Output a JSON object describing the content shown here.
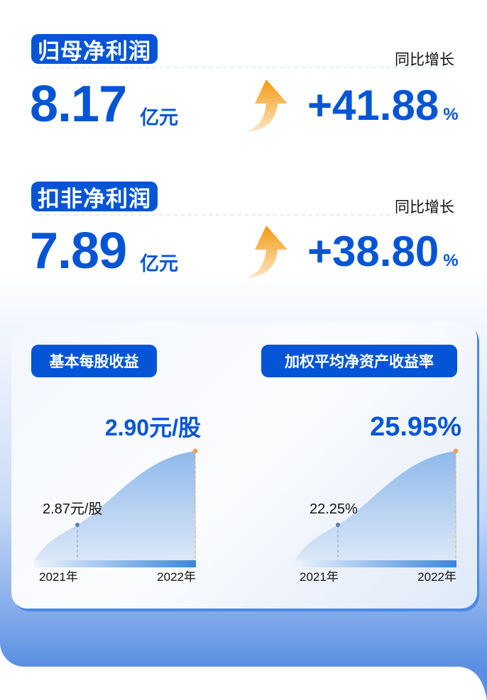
{
  "metrics": [
    {
      "title": "归母净利润",
      "yoy_label": "同比增长",
      "value": "8.17",
      "unit": "亿元",
      "change": "+41.88",
      "change_unit": "%"
    },
    {
      "title": "扣非净利润",
      "yoy_label": "同比增长",
      "value": "7.89",
      "unit": "亿元",
      "change": "+38.80",
      "change_unit": "%"
    }
  ],
  "colors": {
    "brand": "#0455d6",
    "arrow": "#f39a12",
    "last_point": "#f0a35c",
    "first_point": "#5a7fb0"
  },
  "chart_data": [
    {
      "type": "area",
      "title": "基本每股收益",
      "categories": [
        "2021年",
        "2022年"
      ],
      "values": [
        2.87,
        2.9
      ],
      "labels": [
        "2.87元/股",
        "2.90元/股"
      ],
      "unit": "元/股",
      "grid": false
    },
    {
      "type": "area",
      "title": "加权平均净资产收益率",
      "categories": [
        "2021年",
        "2022年"
      ],
      "values": [
        22.25,
        25.95
      ],
      "labels": [
        "22.25%",
        "25.95%"
      ],
      "unit": "%",
      "grid": false
    }
  ]
}
